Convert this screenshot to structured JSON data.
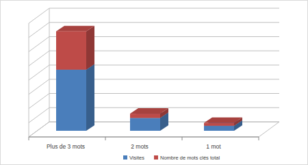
{
  "chart_data": {
    "type": "bar",
    "stacked": true,
    "categories": [
      "Plus de 3 mots",
      "2 mots",
      "1 mot"
    ],
    "series": [
      {
        "name": "Visites",
        "color": "#4a7ebb",
        "values": [
          4.3,
          0.9,
          0.35
        ]
      },
      {
        "name": "Nombre de mots clés total",
        "color": "#be4b48",
        "values": [
          2.7,
          0.3,
          0.2
        ]
      }
    ],
    "ylim": [
      0,
      8
    ],
    "yticks": [
      0,
      1,
      2,
      3,
      4,
      5,
      6,
      7,
      8
    ],
    "grid": true,
    "tick_labels": "x",
    "legend": "bottom"
  }
}
